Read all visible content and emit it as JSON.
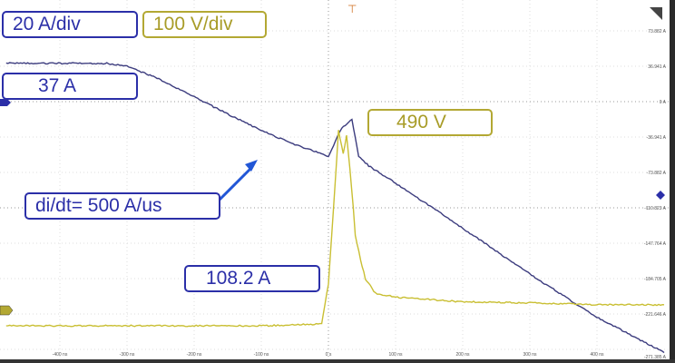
{
  "chart_data": {
    "type": "line",
    "title": "",
    "xlabel": "",
    "ylabel": "",
    "x_ticks": [
      "-400 ns",
      "-300 ns",
      "-200 ns",
      "-100 ns",
      "0 s",
      "100 ns",
      "200 ns",
      "300 ns",
      "400 ns"
    ],
    "y_ticks": [
      "73.882 A",
      "36.941 A",
      "0 A",
      "-36.941 A",
      "-73.882 A",
      "-110.823 A",
      "-147.764 A",
      "-184.705 A",
      "-221.646 A",
      "-271.385 A"
    ],
    "xlim_ns": [
      -480,
      500
    ],
    "grid": true,
    "series": [
      {
        "color": "#3c3c7e",
        "x_ns": [
          -480,
          -330,
          -300,
          -250,
          -200,
          -150,
          -100,
          -50,
          0,
          10,
          20,
          35,
          45,
          60,
          100,
          200,
          300,
          400,
          500
        ],
        "y_A": [
          40,
          40,
          37,
          23,
          5,
          -13,
          -30,
          -45,
          -57,
          -42,
          -27,
          -19,
          -57,
          -67,
          -85,
          -132,
          -180,
          -225,
          -262
        ]
      },
      {
        "color": "#c9bf33",
        "x_ns": [
          -480,
          -100,
          -10,
          0,
          10,
          15,
          22,
          27,
          32,
          37,
          40,
          48,
          55,
          70,
          100,
          200,
          300,
          400,
          500
        ],
        "y_A": [
          -234,
          -234,
          -232,
          -190,
          -85,
          -30,
          -55,
          -35,
          -70,
          -110,
          -140,
          -165,
          -185,
          -200,
          -204,
          -209,
          -210,
          -212,
          -212
        ]
      }
    ]
  },
  "labels": {
    "current_scale": "20 A/div",
    "voltage_scale": "100 V/div",
    "current_level": "37 A",
    "voltage_peak": "490 V",
    "didt": "di/dt= 500 A/us",
    "peak_current": "108.2 A"
  },
  "colors": {
    "current": "#2b2fa8",
    "voltage": "#b3a833",
    "arrow": "#2156d6"
  }
}
